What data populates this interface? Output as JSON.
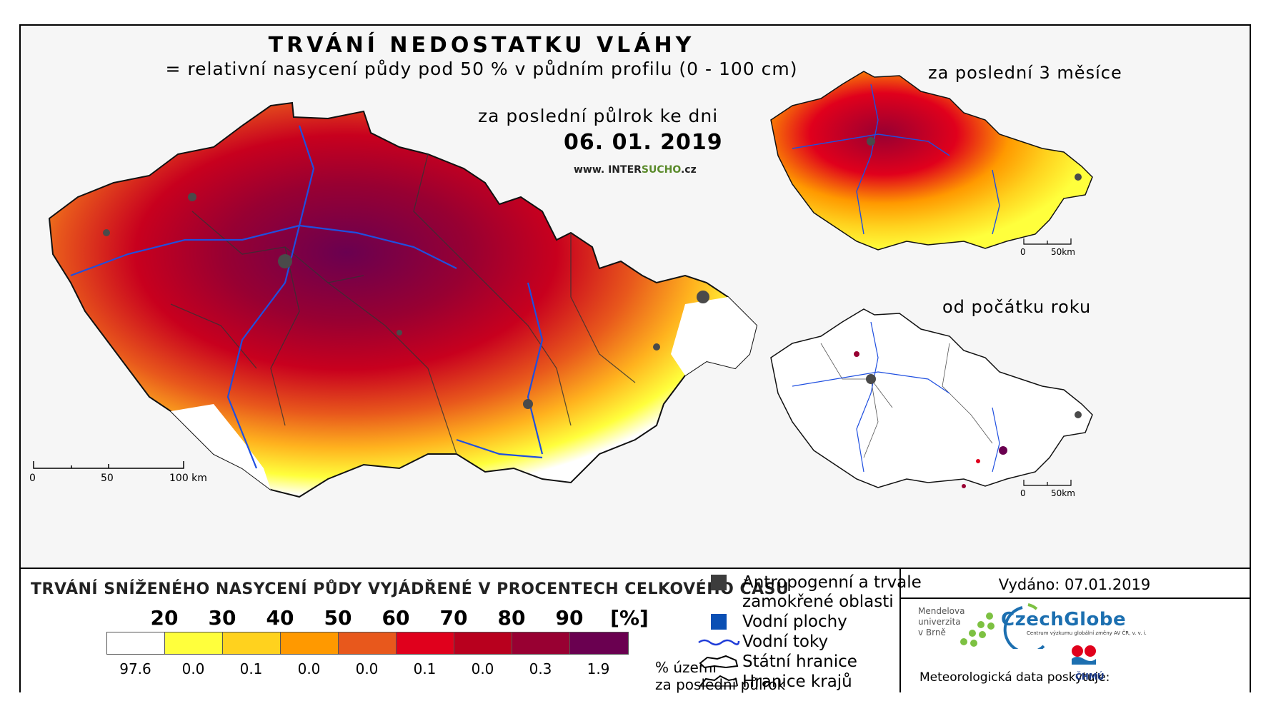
{
  "header": {
    "title": "TRVÁNÍ NEDOSTATKU VLÁHY",
    "subtitle": "= relativní nasycení půdy pod 50 % v půdním profilu (0 - 100 cm)",
    "period_label": "za poslední půlrok ke dni",
    "date": "06. 01. 2019",
    "website_prefix": "www. INTER",
    "website_highlight": "SUCHO",
    "website_suffix": ".cz"
  },
  "main_map": {
    "scale_labels": [
      "0",
      "50",
      "100 km"
    ]
  },
  "inset_3months": {
    "title": "za poslední 3 měsíce",
    "scale_labels": [
      "0",
      "50km"
    ]
  },
  "inset_year": {
    "title": "od počátku roku",
    "scale_labels": [
      "0",
      "50km"
    ]
  },
  "legend": {
    "title": "TRVÁNÍ SNÍŽENÉHO NASYCENÍ PŮDY VYJÁDŘENÉ V PROCENTECH CELKOVÉHO ČASU",
    "class_breaks": [
      "20",
      "30",
      "40",
      "50",
      "60",
      "70",
      "80",
      "90"
    ],
    "unit": "[%]",
    "class_colors": [
      "#ffffff",
      "#ffff3c",
      "#ffd21e",
      "#ff9900",
      "#e8581c",
      "#e0001c",
      "#b8001e",
      "#980032",
      "#6a0050"
    ],
    "area_percent": [
      "97.6",
      "0.0",
      "0.1",
      "0.0",
      "0.0",
      "0.1",
      "0.0",
      "0.3",
      "1.9"
    ],
    "area_note": [
      "% území",
      "za poslední půlrok"
    ],
    "symbols": [
      {
        "label": [
          "Antropogenní a trvale",
          "zamokřené oblasti"
        ],
        "color": "#3c3c3c"
      },
      {
        "label": [
          "Vodní plochy"
        ],
        "color": "#0a4fb4"
      },
      {
        "label": [
          "Vodní toky"
        ],
        "color": "#1f3cd8"
      },
      {
        "label": [
          "Státní hranice"
        ],
        "color": "#000000"
      },
      {
        "label": [
          "Hranice krajů"
        ],
        "color": "#000000"
      }
    ]
  },
  "credits": {
    "issued": "Vydáno: 07.01.2019",
    "mendel": [
      "Mendelova",
      "univerzita",
      "v Brně"
    ],
    "czechglobe": "CzechGlobe",
    "czechglobe_sub": "Centrum výzkumu globální změny AV ČR, v. v. i.",
    "meteo_label": "Meteorologická data poskytuje:",
    "chmu": "ČHMÚ"
  }
}
